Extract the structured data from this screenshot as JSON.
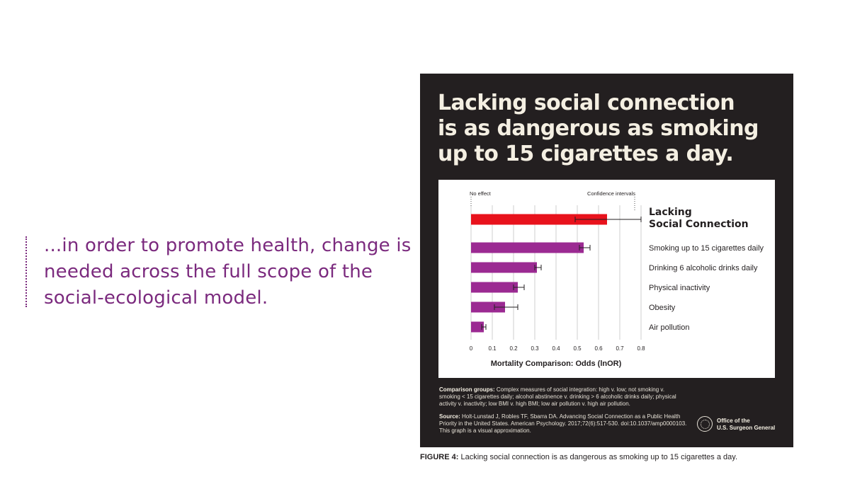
{
  "quote": "...in order to promote health, change is needed across the full scope of the social-ecological model.",
  "figure": {
    "headline_lines": [
      "Lacking social connection",
      "is as dangerous as smoking",
      "up to 15 cigarettes a day."
    ],
    "comparison_label": "Comparison groups:",
    "comparison_text": "Complex measures of social integration: high v. low; not smoking v. smoking < 15 cigarettes daily; alcohol abstinence v. drinking > 6 alcoholic drinks daily; physical activity v. inactivity; low BMI v. high BMI; low air pollution v. high air pollution.",
    "source_label": "Source:",
    "source_text": "Holt-Lunstad J, Robles TF, Sbarra DA. Advancing Social Connection as a Public Health Priority in the United States. American Psychology. 2017;72(6):517-530. doi:10.1037/amp0000103. This graph is a visual approximation.",
    "office_line1": "Office of the",
    "office_line2": "U.S. Surgeon General"
  },
  "caption": {
    "lead": "FIGURE 4:",
    "text": "Lacking social connection is as dangerous as smoking up to 15 cigarettes a day."
  },
  "colors": {
    "accent_purple": "#7b2a7e",
    "bar_purple": "#9b2a92",
    "bar_red": "#e8121c",
    "panel_bg": "#231f20",
    "headline": "#f4efe2"
  },
  "chart_data": {
    "type": "bar",
    "orientation": "horizontal",
    "annotations": [
      "No effect",
      "Confidence intervals"
    ],
    "categories": [
      "Lacking Social Connection",
      "Smoking up to 15 cigarettes daily",
      "Drinking 6 alcoholic drinks daily",
      "Physical inactivity",
      "Obesity",
      "Air pollution"
    ],
    "values": [
      0.64,
      0.53,
      0.31,
      0.22,
      0.16,
      0.06
    ],
    "ci_low": [
      0.49,
      0.51,
      0.3,
      0.2,
      0.11,
      0.05
    ],
    "ci_high": [
      0.8,
      0.56,
      0.33,
      0.25,
      0.22,
      0.07
    ],
    "highlight_index": 0,
    "xticks": [
      "0",
      "0.1",
      "0.2",
      "0.3",
      "0.4",
      "0.5",
      "0.6",
      "0.7",
      "0.8"
    ],
    "xlim": [
      0,
      0.8
    ],
    "xlabel": "Mortality Comparison: Odds (lnOR)",
    "grid": true
  }
}
